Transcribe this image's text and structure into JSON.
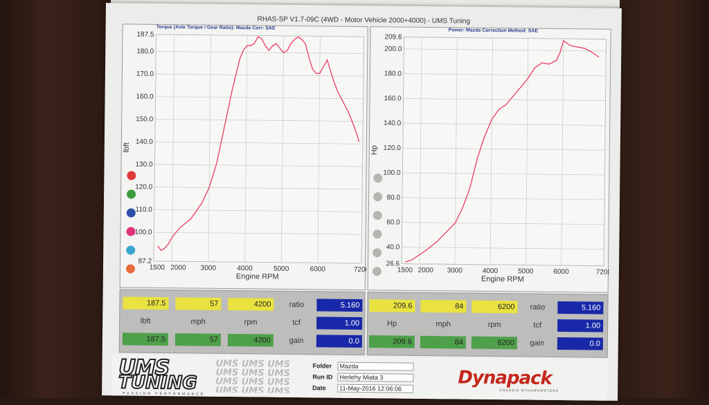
{
  "report": {
    "title": "RHAS-SP V1.7-09C  (4WD - Motor Vehicle 2000+4000) - UMS Tuning"
  },
  "left_chart_header": {
    "label": "Torque (Axle Torque / Gear Ratio): Mazda    Corr: SAE"
  },
  "right_chart_header": {
    "label": "Power: Mazda      Correction Method: SAE"
  },
  "chart_data": [
    {
      "type": "line",
      "title": "",
      "xlabel": "Engine RPM",
      "ylabel": "lbft",
      "xlim": [
        1500,
        7200
      ],
      "ylim": [
        87.2,
        187.5
      ],
      "x_ticks": [
        "1500",
        "2000",
        "3000",
        "4000",
        "5000",
        "6000",
        "7200"
      ],
      "y_ticks": [
        "87.2",
        "100.0",
        "110.0",
        "120.0",
        "130.0",
        "140.0",
        "150.0",
        "160.0",
        "170.0",
        "180.0",
        "187.5"
      ],
      "grid": true,
      "color": "#e8486a",
      "series": [
        {
          "x": [
            1600,
            1700,
            1800,
            1900,
            2000,
            2200,
            2500,
            2800,
            3000,
            3200,
            3400,
            3600,
            3800,
            3900,
            4000,
            4100,
            4200,
            4300,
            4400,
            4500,
            4600,
            4700,
            4800,
            4900,
            5000,
            5100,
            5200,
            5300,
            5400,
            5500,
            5600,
            5700,
            5800,
            5900,
            6000,
            6100,
            6200,
            6300,
            6400,
            6500,
            6600,
            6800,
            7000,
            7100
          ],
          "y": [
            94,
            92,
            93,
            95,
            98,
            102,
            106,
            113,
            120,
            131,
            147,
            163,
            177,
            181,
            183,
            183,
            184,
            187,
            186,
            183,
            181,
            183,
            184,
            182,
            180,
            181,
            184,
            186,
            187,
            186,
            184,
            178,
            173,
            171,
            171,
            174,
            177,
            172,
            167,
            163,
            160,
            154,
            146,
            141
          ]
        }
      ]
    },
    {
      "type": "line",
      "title": "",
      "xlabel": "Engine RPM",
      "ylabel": "Hp",
      "xlim": [
        1500,
        7200
      ],
      "ylim": [
        26.6,
        209.6
      ],
      "x_ticks": [
        "1500",
        "2000",
        "3000",
        "4000",
        "5000",
        "6000",
        "7200"
      ],
      "y_ticks": [
        "26.6",
        "40.0",
        "60.0",
        "80.0",
        "100.0",
        "120.0",
        "140.0",
        "160.0",
        "180.0",
        "200.0",
        "209.6"
      ],
      "grid": true,
      "color": "#e8486a",
      "series": [
        {
          "x": [
            1600,
            1800,
            2000,
            2200,
            2500,
            2800,
            3000,
            3200,
            3400,
            3600,
            3800,
            4000,
            4200,
            4400,
            4600,
            4800,
            5000,
            5200,
            5400,
            5600,
            5800,
            5900,
            6000,
            6100,
            6200,
            6400,
            6600,
            6800,
            7000
          ],
          "y": [
            28,
            30,
            34,
            38,
            45,
            54,
            60,
            72,
            88,
            112,
            130,
            144,
            152,
            156,
            163,
            170,
            177,
            186,
            190,
            189,
            192,
            198,
            208,
            206,
            204,
            203,
            202,
            199,
            195
          ]
        }
      ]
    }
  ],
  "series_dots": {
    "left": [
      "#e03b3b",
      "#3a9a3a",
      "#2c4ea8",
      "#e0337a",
      "#3aa6d0",
      "#e86a3a"
    ],
    "right": [
      "#b5b5b2",
      "#b5b5b2",
      "#b5b5b2",
      "#b5b5b2",
      "#b5b5b2",
      "#b5b5b2"
    ]
  },
  "left_panel": {
    "max_value": "187.5",
    "max_mph": "57",
    "max_rpm": "4200",
    "unit_label": "lbft",
    "mph_label": "mph",
    "rpm_label": "rpm",
    "cur_value": "187.5",
    "cur_mph": "57",
    "cur_rpm": "4200",
    "ratio_label": "ratio",
    "ratio_value": "5.160",
    "tcf_label": "tcf",
    "tcf_value": "1.00",
    "gain_label": "gain",
    "gain_value": "0.0"
  },
  "right_panel": {
    "max_value": "209.6",
    "max_mph": "84",
    "max_rpm": "6200",
    "unit_label": "Hp",
    "mph_label": "mph",
    "rpm_label": "rpm",
    "cur_value": "209.6",
    "cur_mph": "84",
    "cur_rpm": "6200",
    "ratio_label": "ratio",
    "ratio_value": "5.160",
    "tcf_label": "tcf",
    "tcf_value": "1.00",
    "gain_label": "gain",
    "gain_value": "0.0"
  },
  "footer": {
    "logo_line1": "UMS",
    "logo_line2": "TUNING",
    "logo_tagline": "PASSION   PERFORMANCE   SPEED",
    "logo_repeat": "UMS UMS UMS UMS UMS UMS UMS UMS UMS UMS UMS UMS UMS UMS UMS UMS UMS UMS UMS UMS",
    "folder_label": "Folder",
    "folder_value": "Mazda",
    "run_label": "Run ID",
    "run_value": "Herlehy Miata 3",
    "date_label": "Date",
    "date_value": "11-May-2016  12:06:06",
    "brand": "Dynapack",
    "brand_sub": "CHASSIS DYNAMOMETERS"
  }
}
